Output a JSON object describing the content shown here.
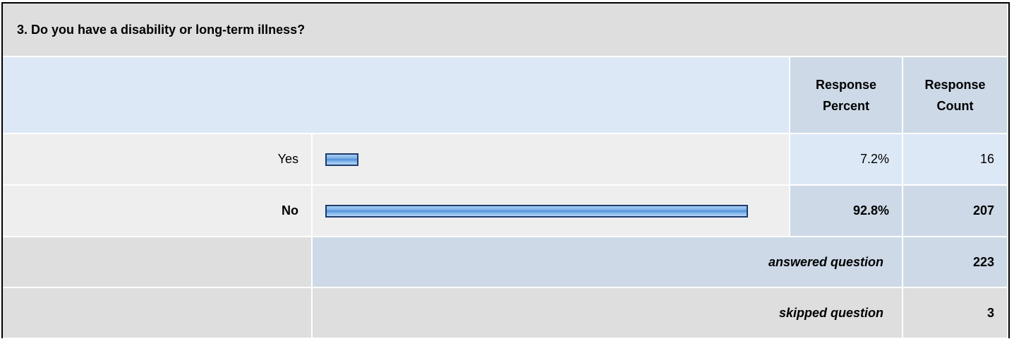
{
  "title": "3. Do you have a disability or long-term illness?",
  "header": {
    "percent": "Response Percent",
    "count": "Response Count"
  },
  "rows": [
    {
      "label": "Yes",
      "percent": 7.2,
      "percent_label": "7.2%",
      "count": 16
    },
    {
      "label": "No",
      "percent": 92.8,
      "percent_label": "92.8%",
      "count": 207
    }
  ],
  "summary": [
    {
      "label": "answered question",
      "count": 223
    },
    {
      "label": "skipped question",
      "count": 3
    }
  ]
}
